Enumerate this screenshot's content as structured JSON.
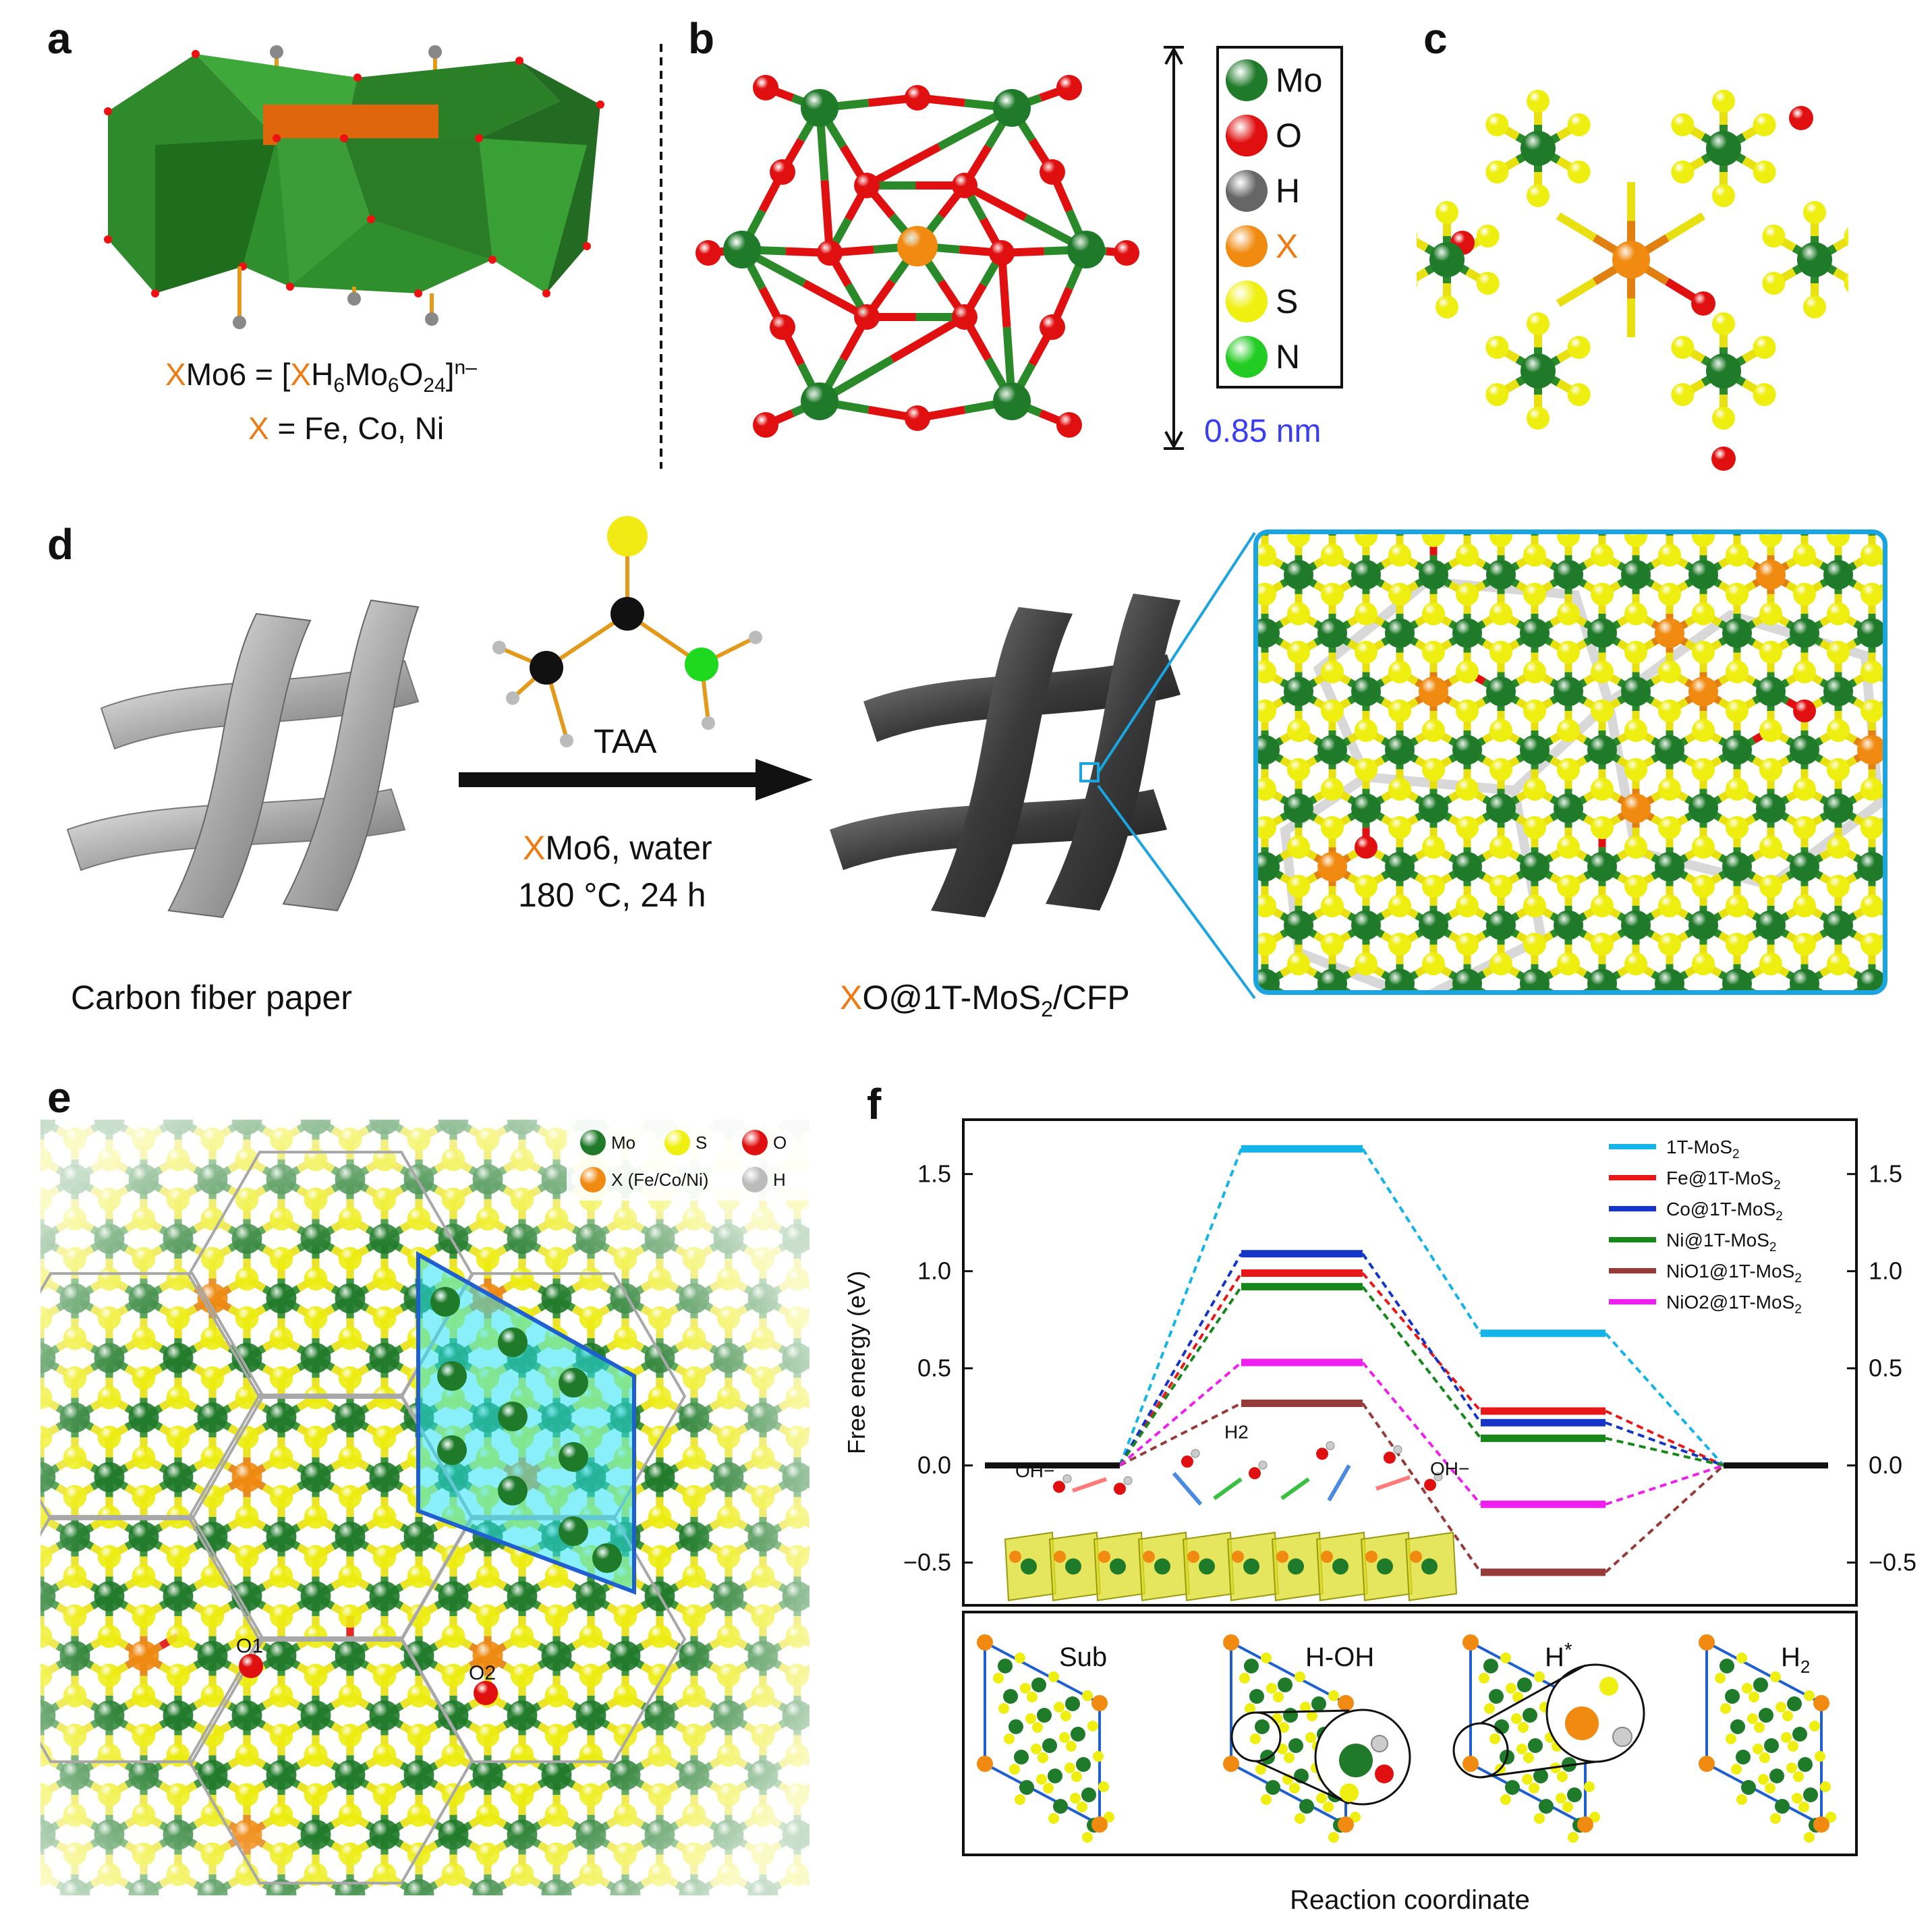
{
  "panels": {
    "a": {
      "label": "a",
      "formula_x": "X",
      "formula_rest": "Mo6 = [",
      "formula_x2": "X",
      "formula_h": "H",
      "formula_h_sub": "6",
      "formula_mo": "Mo",
      "formula_mo_sub": "6",
      "formula_o": "O",
      "formula_o_sub": "24",
      "formula_close": "]",
      "formula_sup": "n–",
      "x_def_x": "X",
      "x_def_rest": " = Fe, Co, Ni"
    },
    "b": {
      "label": "b",
      "size_label": "0.85 nm",
      "legend": [
        {
          "symbol": "Mo",
          "color": "#1f7a2a"
        },
        {
          "symbol": "O",
          "color": "#e01010"
        },
        {
          "symbol": "H",
          "color": "#666666"
        },
        {
          "symbol": "X",
          "color": "#f08a10"
        },
        {
          "symbol": "S",
          "color": "#f0f010"
        },
        {
          "symbol": "N",
          "color": "#22cc22"
        }
      ]
    },
    "c": {
      "label": "c"
    },
    "d": {
      "label": "d",
      "reagent": "TAA",
      "cond_x": "X",
      "cond_line1_rest": "Mo6, water",
      "cond_line2": "180 °C, 24 h",
      "left_caption": "Carbon fiber paper",
      "right_caption_x": "X",
      "right_caption_main": "O@1T-MoS",
      "right_caption_sub": "2",
      "right_caption_end": "/CFP"
    },
    "e": {
      "label": "e",
      "legend": [
        {
          "name": "Mo",
          "color": "#1f7a2a"
        },
        {
          "name": "S",
          "color": "#f0f010"
        },
        {
          "name": "O",
          "color": "#e01010"
        },
        {
          "name": "X (Fe/Co/Ni)",
          "color": "#f08a10"
        },
        {
          "name": "H",
          "color": "#bbbbbb"
        }
      ],
      "site1": "O1",
      "site2": "O2"
    },
    "f": {
      "label": "f",
      "inset_labels": [
        "OH−",
        "H2",
        "OH−"
      ],
      "bottom_states": [
        {
          "main": "Sub",
          "sub": "",
          "sup": ""
        },
        {
          "main": "H-OH",
          "sub": "",
          "sup": ""
        },
        {
          "main": "H",
          "sub": "",
          "sup": "*"
        },
        {
          "main": "H",
          "sub": "2",
          "sup": ""
        }
      ]
    }
  },
  "chart_data": {
    "type": "line",
    "title": "",
    "xlabel": "Reaction coordinate",
    "ylabel": "Free energy (eV)",
    "ylim": [
      -0.72,
      1.78
    ],
    "yticks": [
      "1.5",
      "1.0",
      "0.5",
      "0.0",
      "−0.5"
    ],
    "yticks_right": [
      "1.5",
      "1.0",
      "0.5",
      "0.0",
      "−0.5"
    ],
    "stages": [
      "Sub",
      "H-OH",
      "H*",
      "H2"
    ],
    "legend_position": "top-right",
    "series": [
      {
        "name": "1T-MoS",
        "name_sub": "2",
        "name_end": "",
        "color": "#15b4e8",
        "values": [
          0,
          1.63,
          0.68,
          0
        ]
      },
      {
        "name": "Fe@1T-MoS",
        "name_sub": "2",
        "name_end": "",
        "color": "#e81818",
        "values": [
          0,
          0.99,
          0.28,
          0
        ]
      },
      {
        "name": "Co@1T-MoS",
        "name_sub": "2",
        "name_end": "",
        "color": "#1535c8",
        "values": [
          0,
          1.09,
          0.22,
          0
        ]
      },
      {
        "name": "Ni@1T-MoS",
        "name_sub": "2",
        "name_end": "",
        "color": "#17871b",
        "values": [
          0,
          0.92,
          0.14,
          0
        ]
      },
      {
        "name": "NiO1@1T-MoS",
        "name_sub": "2",
        "name_end": "",
        "color": "#963a3a",
        "values": [
          0,
          0.32,
          -0.55,
          0
        ]
      },
      {
        "name": "NiO2@1T-MoS",
        "name_sub": "2",
        "name_end": "",
        "color": "#ef20ef",
        "values": [
          0,
          0.53,
          -0.2,
          0
        ]
      }
    ]
  }
}
